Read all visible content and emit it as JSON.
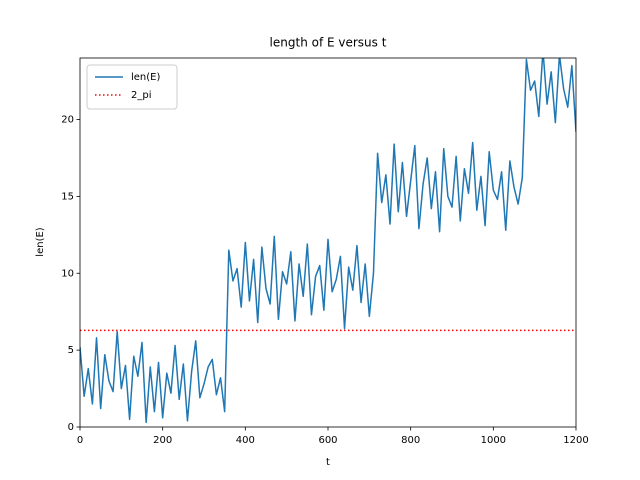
{
  "chart_data": {
    "type": "line",
    "title": "length of E versus t",
    "xlabel": "t",
    "ylabel": "len(E)",
    "x": [
      0,
      10,
      20,
      30,
      40,
      50,
      60,
      70,
      80,
      90,
      100,
      110,
      120,
      130,
      140,
      150,
      160,
      170,
      180,
      190,
      200,
      210,
      220,
      230,
      240,
      250,
      260,
      270,
      280,
      290,
      300,
      310,
      320,
      330,
      340,
      350,
      360,
      370,
      380,
      390,
      400,
      410,
      420,
      430,
      440,
      450,
      460,
      470,
      480,
      490,
      500,
      510,
      520,
      530,
      540,
      550,
      560,
      570,
      580,
      590,
      600,
      610,
      620,
      630,
      640,
      650,
      660,
      670,
      680,
      690,
      700,
      710,
      720,
      730,
      740,
      750,
      760,
      770,
      780,
      790,
      800,
      810,
      820,
      830,
      840,
      850,
      860,
      870,
      880,
      890,
      900,
      910,
      920,
      930,
      940,
      950,
      960,
      970,
      980,
      990,
      1000,
      1010,
      1020,
      1030,
      1040,
      1050,
      1060,
      1070,
      1080,
      1090,
      1100,
      1110,
      1120,
      1130,
      1140,
      1150,
      1160,
      1170,
      1180,
      1190,
      1200
    ],
    "series": [
      {
        "name": "len(E)",
        "color": "#1f77b4",
        "values": [
          5.2,
          2.0,
          3.8,
          1.5,
          5.8,
          1.2,
          4.7,
          3.0,
          2.3,
          6.2,
          2.5,
          4.0,
          0.5,
          4.6,
          3.3,
          5.5,
          0.3,
          3.9,
          1.0,
          4.2,
          0.6,
          3.5,
          2.2,
          5.3,
          1.8,
          4.1,
          0.4,
          3.6,
          5.6,
          1.9,
          2.8,
          3.9,
          4.4,
          2.1,
          3.2,
          1.0,
          11.5,
          9.5,
          10.3,
          7.8,
          12.0,
          8.2,
          10.9,
          6.8,
          11.7,
          9.0,
          8.0,
          12.4,
          7.0,
          10.1,
          9.3,
          11.4,
          6.9,
          10.6,
          8.5,
          11.9,
          7.3,
          9.8,
          10.5,
          7.6,
          12.2,
          8.8,
          9.6,
          11.1,
          6.4,
          10.4,
          8.9,
          11.8,
          8.1,
          10.6,
          7.2,
          10.0,
          17.8,
          14.6,
          16.4,
          13.2,
          18.4,
          14.0,
          17.2,
          13.7,
          16.0,
          18.3,
          12.9,
          15.8,
          17.5,
          14.2,
          16.6,
          12.7,
          18.1,
          15.0,
          14.3,
          17.6,
          13.4,
          16.8,
          15.2,
          18.5,
          14.1,
          16.3,
          13.1,
          17.9,
          15.4,
          14.8,
          16.6,
          12.8,
          17.3,
          15.6,
          14.5,
          16.2,
          23.9,
          21.9,
          22.5,
          20.2,
          24.5,
          21.0,
          23.1,
          19.8,
          24.2,
          22.0,
          20.8,
          23.5,
          19.2
        ]
      }
    ],
    "hlines": [
      {
        "name": "2_pi",
        "value": 6.283,
        "color": "#ff0000",
        "style": "dotted"
      }
    ],
    "xlim": [
      0,
      1200
    ],
    "ylim": [
      0,
      24
    ],
    "xticks": [
      0,
      200,
      400,
      600,
      800,
      1000,
      1200
    ],
    "yticks": [
      0,
      5,
      10,
      15,
      20
    ],
    "grid": false,
    "legend": "upper left"
  }
}
